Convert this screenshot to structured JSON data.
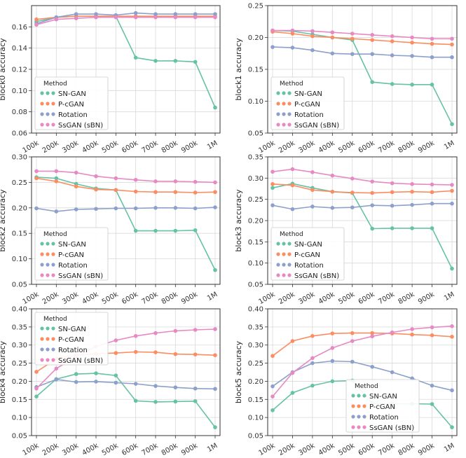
{
  "chart_data": [
    {
      "type": "line",
      "ylabel": "block0 accuracy",
      "ylim": [
        0.06,
        0.18
      ],
      "yticks": [
        "0.06",
        "0.08",
        "0.10",
        "0.12",
        "0.14",
        "0.16"
      ],
      "legend": {
        "title": "Method",
        "position": "lower-left"
      },
      "categories": [
        "100k",
        "200k",
        "300k",
        "400k",
        "500k",
        "600k",
        "700k",
        "800k",
        "900k",
        "1M"
      ],
      "series": [
        {
          "name": "SN-GAN",
          "color": "#66c2a5",
          "values": [
            0.165,
            0.169,
            0.17,
            0.17,
            0.17,
            0.131,
            0.128,
            0.128,
            0.127,
            0.084
          ]
        },
        {
          "name": "P-cGAN",
          "color": "#fc8d62",
          "values": [
            0.167,
            0.169,
            0.17,
            0.17,
            0.17,
            0.17,
            0.17,
            0.17,
            0.17,
            0.17
          ]
        },
        {
          "name": "Rotation",
          "color": "#8da0cb",
          "values": [
            0.163,
            0.169,
            0.172,
            0.172,
            0.171,
            0.173,
            0.172,
            0.172,
            0.172,
            0.172
          ]
        },
        {
          "name": "SsGAN (sBN)",
          "color": "#e78ac3",
          "values": [
            0.162,
            0.167,
            0.168,
            0.169,
            0.169,
            0.169,
            0.169,
            0.169,
            0.169,
            0.169
          ]
        }
      ]
    },
    {
      "type": "line",
      "ylabel": "block1 accuracy",
      "ylim": [
        0.05,
        0.25
      ],
      "yticks": [
        "0.05",
        "0.10",
        "0.15",
        "0.20",
        "0.25"
      ],
      "legend": {
        "title": "Method",
        "position": "lower-left"
      },
      "categories": [
        "100k",
        "200k",
        "300k",
        "400k",
        "500k",
        "600k",
        "700k",
        "800k",
        "900k",
        "1M"
      ],
      "series": [
        {
          "name": "SN-GAN",
          "color": "#66c2a5",
          "values": [
            0.211,
            0.21,
            0.205,
            0.2,
            0.196,
            0.13,
            0.127,
            0.126,
            0.126,
            0.064
          ]
        },
        {
          "name": "P-cGAN",
          "color": "#fc8d62",
          "values": [
            0.209,
            0.206,
            0.202,
            0.2,
            0.198,
            0.196,
            0.194,
            0.192,
            0.19,
            0.189
          ]
        },
        {
          "name": "Rotation",
          "color": "#8da0cb",
          "values": [
            0.185,
            0.184,
            0.18,
            0.175,
            0.174,
            0.174,
            0.172,
            0.171,
            0.169,
            0.169
          ]
        },
        {
          "name": "SsGAN (sBN)",
          "color": "#e78ac3",
          "values": [
            0.211,
            0.211,
            0.21,
            0.208,
            0.206,
            0.204,
            0.202,
            0.2,
            0.198,
            0.198
          ]
        }
      ]
    },
    {
      "type": "line",
      "ylabel": "block2 accuracy",
      "ylim": [
        0.05,
        0.3
      ],
      "yticks": [
        "0.05",
        "0.10",
        "0.15",
        "0.20",
        "0.25",
        "0.30"
      ],
      "legend": {
        "title": "Method",
        "position": "lower-left"
      },
      "categories": [
        "100k",
        "200k",
        "300k",
        "400k",
        "500k",
        "600k",
        "700k",
        "800k",
        "900k",
        "1M"
      ],
      "series": [
        {
          "name": "SN-GAN",
          "color": "#66c2a5",
          "values": [
            0.26,
            0.258,
            0.247,
            0.238,
            0.235,
            0.155,
            0.155,
            0.155,
            0.156,
            0.078
          ]
        },
        {
          "name": "P-cGAN",
          "color": "#fc8d62",
          "values": [
            0.258,
            0.252,
            0.242,
            0.236,
            0.235,
            0.232,
            0.231,
            0.231,
            0.23,
            0.231
          ]
        },
        {
          "name": "Rotation",
          "color": "#8da0cb",
          "values": [
            0.199,
            0.193,
            0.197,
            0.198,
            0.199,
            0.199,
            0.2,
            0.2,
            0.199,
            0.201
          ]
        },
        {
          "name": "SsGAN (sBN)",
          "color": "#e78ac3",
          "values": [
            0.272,
            0.272,
            0.269,
            0.262,
            0.258,
            0.255,
            0.252,
            0.252,
            0.251,
            0.25
          ]
        }
      ]
    },
    {
      "type": "line",
      "ylabel": "block3 accuracy",
      "ylim": [
        0.05,
        0.35
      ],
      "yticks": [
        "0.05",
        "0.10",
        "0.15",
        "0.20",
        "0.25",
        "0.30",
        "0.35"
      ],
      "legend": {
        "title": "Method",
        "position": "lower-left"
      },
      "categories": [
        "100k",
        "200k",
        "300k",
        "400k",
        "500k",
        "600k",
        "700k",
        "800k",
        "900k",
        "1M"
      ],
      "series": [
        {
          "name": "SN-GAN",
          "color": "#66c2a5",
          "values": [
            0.277,
            0.287,
            0.277,
            0.268,
            0.265,
            0.181,
            0.182,
            0.182,
            0.182,
            0.087
          ]
        },
        {
          "name": "P-cGAN",
          "color": "#fc8d62",
          "values": [
            0.286,
            0.283,
            0.272,
            0.268,
            0.266,
            0.265,
            0.267,
            0.268,
            0.267,
            0.27
          ]
        },
        {
          "name": "Rotation",
          "color": "#8da0cb",
          "values": [
            0.236,
            0.227,
            0.233,
            0.23,
            0.231,
            0.236,
            0.235,
            0.237,
            0.24,
            0.24
          ]
        },
        {
          "name": "SsGAN (sBN)",
          "color": "#e78ac3",
          "values": [
            0.315,
            0.321,
            0.314,
            0.306,
            0.299,
            0.292,
            0.288,
            0.286,
            0.285,
            0.284
          ]
        }
      ]
    },
    {
      "type": "line",
      "ylabel": "block4 accuracy",
      "ylim": [
        0.05,
        0.4
      ],
      "yticks": [
        "0.05",
        "0.10",
        "0.15",
        "0.20",
        "0.25",
        "0.30",
        "0.35",
        "0.40"
      ],
      "legend": {
        "title": "Method",
        "position": "top-left"
      },
      "categories": [
        "100k",
        "200k",
        "300k",
        "400k",
        "500k",
        "600k",
        "700k",
        "800k",
        "900k",
        "1M"
      ],
      "series": [
        {
          "name": "SN-GAN",
          "color": "#66c2a5",
          "values": [
            0.158,
            0.206,
            0.22,
            0.222,
            0.216,
            0.146,
            0.143,
            0.144,
            0.145,
            0.073
          ]
        },
        {
          "name": "P-cGAN",
          "color": "#fc8d62",
          "values": [
            0.226,
            0.262,
            0.272,
            0.276,
            0.278,
            0.281,
            0.28,
            0.275,
            0.274,
            0.272
          ]
        },
        {
          "name": "Rotation",
          "color": "#8da0cb",
          "values": [
            0.184,
            0.205,
            0.198,
            0.199,
            0.196,
            0.193,
            0.187,
            0.183,
            0.18,
            0.179
          ]
        },
        {
          "name": "SsGAN (sBN)",
          "color": "#e78ac3",
          "values": [
            0.18,
            0.235,
            0.268,
            0.296,
            0.313,
            0.325,
            0.333,
            0.339,
            0.342,
            0.344
          ]
        }
      ]
    },
    {
      "type": "line",
      "ylabel": "block5 accuracy",
      "ylim": [
        0.05,
        0.4
      ],
      "yticks": [
        "0.05",
        "0.10",
        "0.15",
        "0.20",
        "0.25",
        "0.30",
        "0.35",
        "0.40"
      ],
      "legend": {
        "title": "Method",
        "position": "lower-center"
      },
      "categories": [
        "100k",
        "200k",
        "300k",
        "400k",
        "500k",
        "600k",
        "700k",
        "800k",
        "900k",
        "1M"
      ],
      "series": [
        {
          "name": "SN-GAN",
          "color": "#66c2a5",
          "values": [
            0.12,
            0.168,
            0.188,
            0.2,
            0.202,
            0.139,
            0.138,
            0.138,
            0.137,
            0.073
          ]
        },
        {
          "name": "P-cGAN",
          "color": "#fc8d62",
          "values": [
            0.27,
            0.311,
            0.325,
            0.332,
            0.333,
            0.333,
            0.332,
            0.329,
            0.327,
            0.323
          ]
        },
        {
          "name": "Rotation",
          "color": "#8da0cb",
          "values": [
            0.186,
            0.225,
            0.25,
            0.256,
            0.254,
            0.24,
            0.225,
            0.208,
            0.188,
            0.175
          ]
        },
        {
          "name": "SsGAN (sBN)",
          "color": "#e78ac3",
          "values": [
            0.158,
            0.223,
            0.264,
            0.292,
            0.311,
            0.324,
            0.335,
            0.344,
            0.349,
            0.352
          ]
        }
      ]
    }
  ]
}
